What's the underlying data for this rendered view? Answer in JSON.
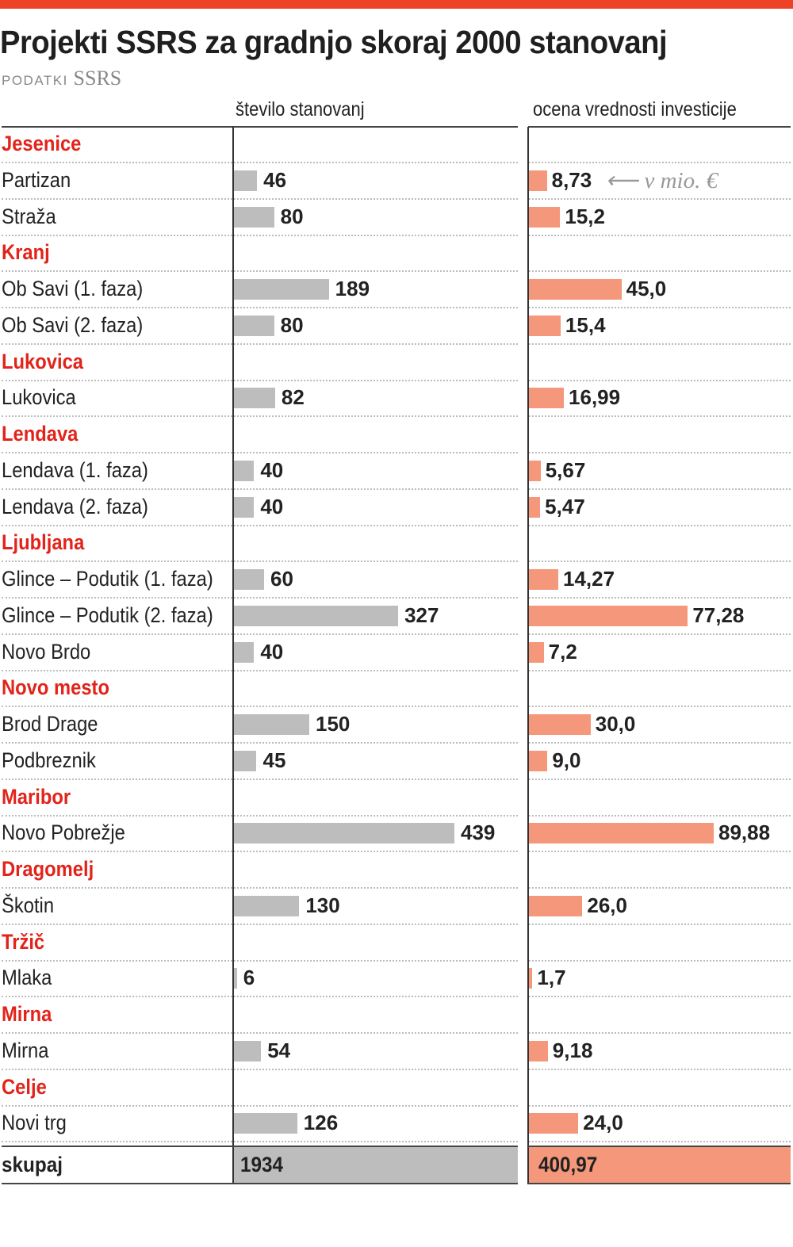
{
  "header": {
    "title": "Projekti SSRS za gradnjo skoraj 2000 stanovanj",
    "source_prefix": "PODATKI",
    "source_name": "SSRS"
  },
  "chart_data": {
    "type": "bar",
    "orientation": "horizontal",
    "title": "Projekti SSRS za gradnjo skoraj 2000 stanovanj",
    "subtitle": "PODATKI SSRS",
    "unit_note": "v mio. €",
    "series": [
      {
        "name": "število stanovanj",
        "color": "#bdbdbd"
      },
      {
        "name": "ocena vrednosti investicije",
        "color": "#f4977a"
      }
    ],
    "groups": [
      {
        "name": "Jesenice",
        "items": [
          {
            "label": "Partizan",
            "stanovanja": 46,
            "stanovanja_label": "46",
            "investicija": 8.73,
            "investicija_label": "8,73"
          },
          {
            "label": "Straža",
            "stanovanja": 80,
            "stanovanja_label": "80",
            "investicija": 15.2,
            "investicija_label": "15,2"
          }
        ]
      },
      {
        "name": "Kranj",
        "items": [
          {
            "label": "Ob Savi (1. faza)",
            "stanovanja": 189,
            "stanovanja_label": "189",
            "investicija": 45.0,
            "investicija_label": "45,0"
          },
          {
            "label": "Ob Savi (2. faza)",
            "stanovanja": 80,
            "stanovanja_label": "80",
            "investicija": 15.4,
            "investicija_label": "15,4"
          }
        ]
      },
      {
        "name": "Lukovica",
        "items": [
          {
            "label": "Lukovica",
            "stanovanja": 82,
            "stanovanja_label": "82",
            "investicija": 16.99,
            "investicija_label": "16,99"
          }
        ]
      },
      {
        "name": "Lendava",
        "items": [
          {
            "label": "Lendava (1. faza)",
            "stanovanja": 40,
            "stanovanja_label": "40",
            "investicija": 5.67,
            "investicija_label": "5,67"
          },
          {
            "label": "Lendava (2. faza)",
            "stanovanja": 40,
            "stanovanja_label": "40",
            "investicija": 5.47,
            "investicija_label": "5,47"
          }
        ]
      },
      {
        "name": "Ljubljana",
        "items": [
          {
            "label": "Glince – Podutik (1. faza)",
            "stanovanja": 60,
            "stanovanja_label": "60",
            "investicija": 14.27,
            "investicija_label": "14,27"
          },
          {
            "label": "Glince – Podutik (2. faza)",
            "stanovanja": 327,
            "stanovanja_label": "327",
            "investicija": 77.28,
            "investicija_label": "77,28"
          },
          {
            "label": "Novo Brdo",
            "stanovanja": 40,
            "stanovanja_label": "40",
            "investicija": 7.2,
            "investicija_label": "7,2"
          }
        ]
      },
      {
        "name": "Novo mesto",
        "items": [
          {
            "label": "Brod Drage",
            "stanovanja": 150,
            "stanovanja_label": "150",
            "investicija": 30.0,
            "investicija_label": "30,0"
          },
          {
            "label": "Podbreznik",
            "stanovanja": 45,
            "stanovanja_label": "45",
            "investicija": 9.0,
            "investicija_label": "9,0"
          }
        ]
      },
      {
        "name": "Maribor",
        "items": [
          {
            "label": "Novo Pobrežje",
            "stanovanja": 439,
            "stanovanja_label": "439",
            "investicija": 89.88,
            "investicija_label": "89,88"
          }
        ]
      },
      {
        "name": "Dragomelj",
        "items": [
          {
            "label": "Škotin",
            "stanovanja": 130,
            "stanovanja_label": "130",
            "investicija": 26.0,
            "investicija_label": "26,0"
          }
        ]
      },
      {
        "name": "Tržič",
        "items": [
          {
            "label": "Mlaka",
            "stanovanja": 6,
            "stanovanja_label": "6",
            "investicija": 1.7,
            "investicija_label": "1,7"
          }
        ]
      },
      {
        "name": "Mirna",
        "items": [
          {
            "label": "Mirna",
            "stanovanja": 54,
            "stanovanja_label": "54",
            "investicija": 9.18,
            "investicija_label": "9,18"
          }
        ]
      },
      {
        "name": "Celje",
        "items": [
          {
            "label": "Novi trg",
            "stanovanja": 126,
            "stanovanja_label": "126",
            "investicija": 24.0,
            "investicija_label": "24,0"
          }
        ]
      }
    ],
    "total": {
      "label": "skupaj",
      "stanovanja": 1934,
      "stanovanja_label": "1934",
      "investicija": 400.97,
      "investicija_label": "400,97"
    },
    "xlim_stanovanja": [
      0,
      560
    ],
    "xlim_investicija": [
      0,
      127
    ],
    "grid": false,
    "legend": "column headers"
  }
}
